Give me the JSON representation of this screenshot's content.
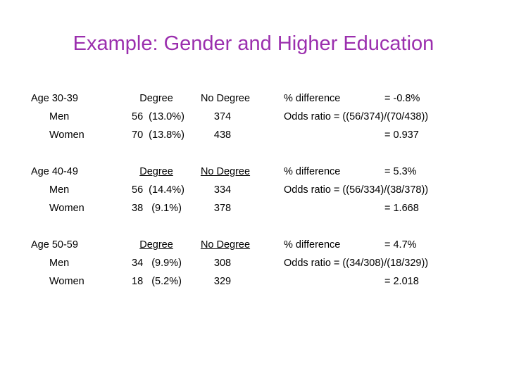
{
  "title": "Example: Gender and Higher Education",
  "groups": [
    {
      "label": "Age 30-39",
      "headers": [
        "Degree",
        "No Degree"
      ],
      "rows": [
        {
          "label": "Men",
          "degree": "56  (13.0%)",
          "no_degree": "374"
        },
        {
          "label": "Women",
          "degree": "70  (13.8%)",
          "no_degree": "438"
        }
      ],
      "difference_label": "% difference",
      "difference": "= -0.8%",
      "odds_ratio": "Odds ratio = ((56/374)/(70/438))",
      "odds_value": "= 0.937"
    },
    {
      "label": "Age 40-49",
      "headers": [
        "Degree",
        "No Degree"
      ],
      "rows": [
        {
          "label": "Men",
          "degree": "56  (14.4%)",
          "no_degree": "334"
        },
        {
          "label": "Women",
          "degree": "38   (9.1%)",
          "no_degree": "378"
        }
      ],
      "difference_label": "% difference",
      "difference": "= 5.3%",
      "odds_ratio": "Odds ratio = ((56/334)/(38/378))",
      "odds_value": "= 1.668"
    },
    {
      "label": "Age 50-59",
      "headers": [
        "Degree",
        "No Degree"
      ],
      "rows": [
        {
          "label": "Men",
          "degree": "34   (9.9%)",
          "no_degree": "308"
        },
        {
          "label": "Women",
          "degree": "18   (5.2%)",
          "no_degree": "329"
        }
      ],
      "difference_label": "% difference",
      "difference": "= 4.7%",
      "odds_ratio": "Odds ratio = ((34/308)/(18/329))",
      "odds_value": "= 2.018"
    }
  ]
}
